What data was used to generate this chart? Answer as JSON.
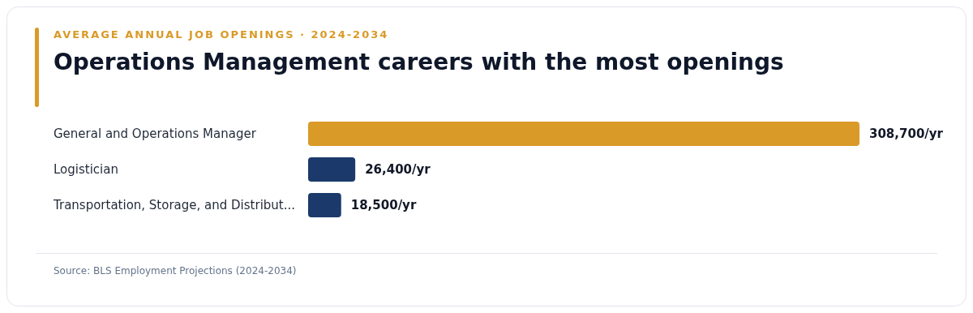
{
  "chart_data": {
    "type": "bar",
    "orientation": "horizontal",
    "subtitle": "AVERAGE ANNUAL JOB OPENINGS · 2024-2034",
    "title": "Operations Management careers with the most openings",
    "categories": [
      "General and Operations Manager",
      "Logistician",
      "Transportation, Storage, and Distribut..."
    ],
    "values": [
      308700,
      26400,
      18500
    ],
    "colors": [
      "#d99a28",
      "#1b3a6b",
      "#1b3a6b"
    ],
    "value_labels": [
      "308,700/yr",
      "26,400/yr",
      "18,500/yr"
    ],
    "annotations": [
      "Source: BLS Employment Projections (2024-2034)"
    ]
  }
}
